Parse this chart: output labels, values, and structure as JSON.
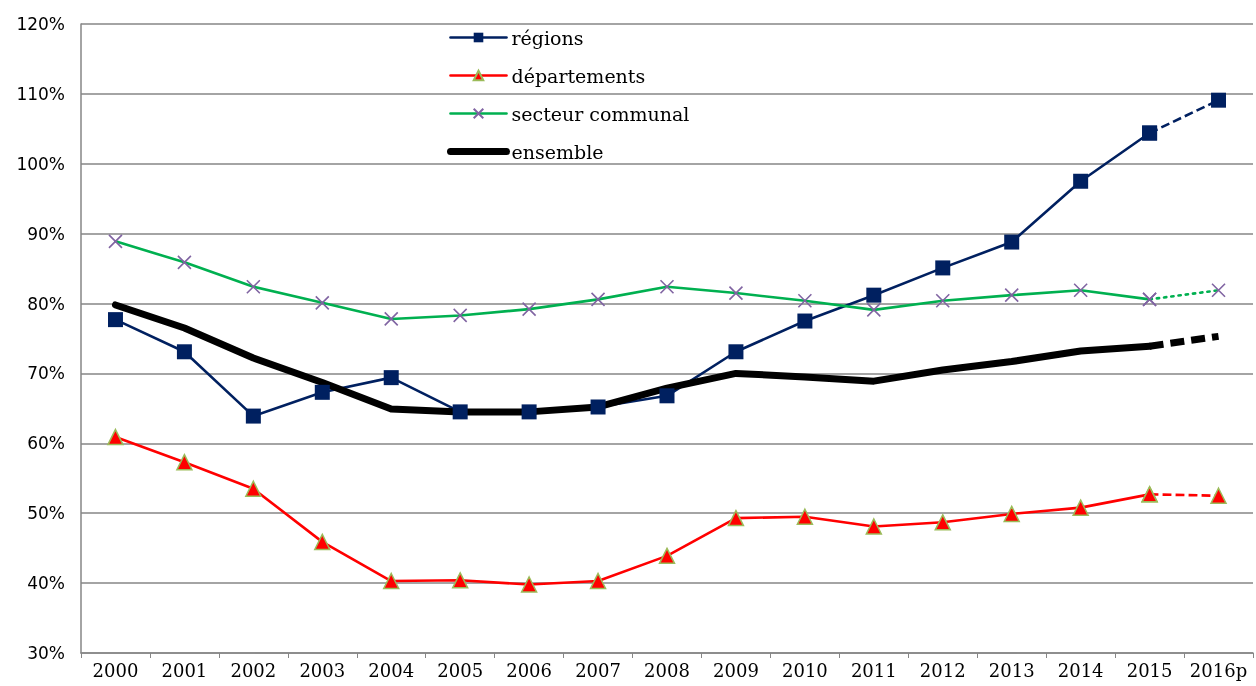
{
  "chart_data": {
    "type": "line",
    "categories": [
      "2000",
      "2001",
      "2002",
      "2003",
      "2004",
      "2005",
      "2006",
      "2007",
      "2008",
      "2009",
      "2010",
      "2011",
      "2012",
      "2013",
      "2014",
      "2015",
      "2016p"
    ],
    "series": [
      {
        "name": "régions",
        "color": "#002060",
        "marker": "square",
        "line_style": "solid",
        "values": [
          77.7,
          73.1,
          63.9,
          67.3,
          69.4,
          64.5,
          64.5,
          65.2,
          66.8,
          73.1,
          77.5,
          81.2,
          85.1,
          88.8,
          97.5,
          104.4,
          null
        ]
      },
      {
        "color": "#002060",
        "marker": "square",
        "line_style": "dashed",
        "values": [
          null,
          null,
          null,
          null,
          null,
          null,
          null,
          null,
          null,
          null,
          null,
          null,
          null,
          null,
          null,
          104.4,
          109.1
        ]
      },
      {
        "name": "départements",
        "color": "#ff0000",
        "marker": "triangle",
        "line_style": "solid",
        "values": [
          60.9,
          57.3,
          53.5,
          45.9,
          40.3,
          40.4,
          39.8,
          40.3,
          43.9,
          49.3,
          49.5,
          48.1,
          48.7,
          49.9,
          50.8,
          52.7,
          null
        ]
      },
      {
        "color": "#ff0000",
        "marker": "triangle",
        "line_style": "dashed",
        "values": [
          null,
          null,
          null,
          null,
          null,
          null,
          null,
          null,
          null,
          null,
          null,
          null,
          null,
          null,
          null,
          52.7,
          52.5
        ]
      },
      {
        "name": "secteur communal",
        "color": "#00b050",
        "marker": "cross",
        "line_style": "solid",
        "colors": [
          "#8064a2",
          "#8064a2",
          "#8064a2",
          "#8064a2",
          "#8064a2",
          "#8064a2",
          "#8064a2",
          "#8064a2",
          "#8064a2",
          "#8064a2",
          "#8064a2",
          "#8064a2",
          "#8064a2",
          "#8064a2",
          "#8064a2",
          "#8064a2",
          null
        ],
        "values": [
          88.9,
          85.9,
          82.4,
          80.1,
          77.8,
          78.3,
          79.2,
          80.6,
          82.4,
          81.5,
          80.4,
          79.1,
          80.4,
          81.2,
          81.9,
          80.6,
          null
        ]
      },
      {
        "color": "#00b050",
        "marker": "cross",
        "line_style": "dotted",
        "colors": [
          null,
          null,
          null,
          null,
          null,
          null,
          null,
          null,
          null,
          null,
          null,
          null,
          null,
          null,
          null,
          "#8064a2",
          "#8064a2"
        ],
        "values": [
          null,
          null,
          null,
          null,
          null,
          null,
          null,
          null,
          null,
          null,
          null,
          null,
          null,
          null,
          null,
          80.6,
          81.9
        ]
      },
      {
        "name": "ensemble",
        "color": "#000000",
        "marker": "none",
        "line_style": "solid",
        "values": [
          79.8,
          76.5,
          72.2,
          68.7,
          64.9,
          64.5,
          64.5,
          65.2,
          67.9,
          70.0,
          69.5,
          68.9,
          70.5,
          71.7,
          73.2,
          73.9,
          null
        ]
      },
      {
        "color": "#000000",
        "marker": "none",
        "line_style": "dashed",
        "values": [
          null,
          null,
          null,
          null,
          null,
          null,
          null,
          null,
          null,
          null,
          null,
          null,
          null,
          null,
          null,
          73.9,
          75.3
        ]
      }
    ],
    "ylim": [
      30,
      120
    ],
    "yticks": [
      {
        "value": 30,
        "label": "30%"
      },
      {
        "value": 40,
        "label": "40%"
      },
      {
        "value": 50,
        "label": "50%"
      },
      {
        "value": 60,
        "label": "60%"
      },
      {
        "value": 70,
        "label": "70%"
      },
      {
        "value": 80,
        "label": "80%"
      },
      {
        "value": 90,
        "label": "90%"
      },
      {
        "value": 100,
        "label": "100%"
      },
      {
        "value": 110,
        "label": "110%"
      },
      {
        "value": 120,
        "label": "120%"
      }
    ],
    "grid": "y",
    "legend": "top"
  }
}
